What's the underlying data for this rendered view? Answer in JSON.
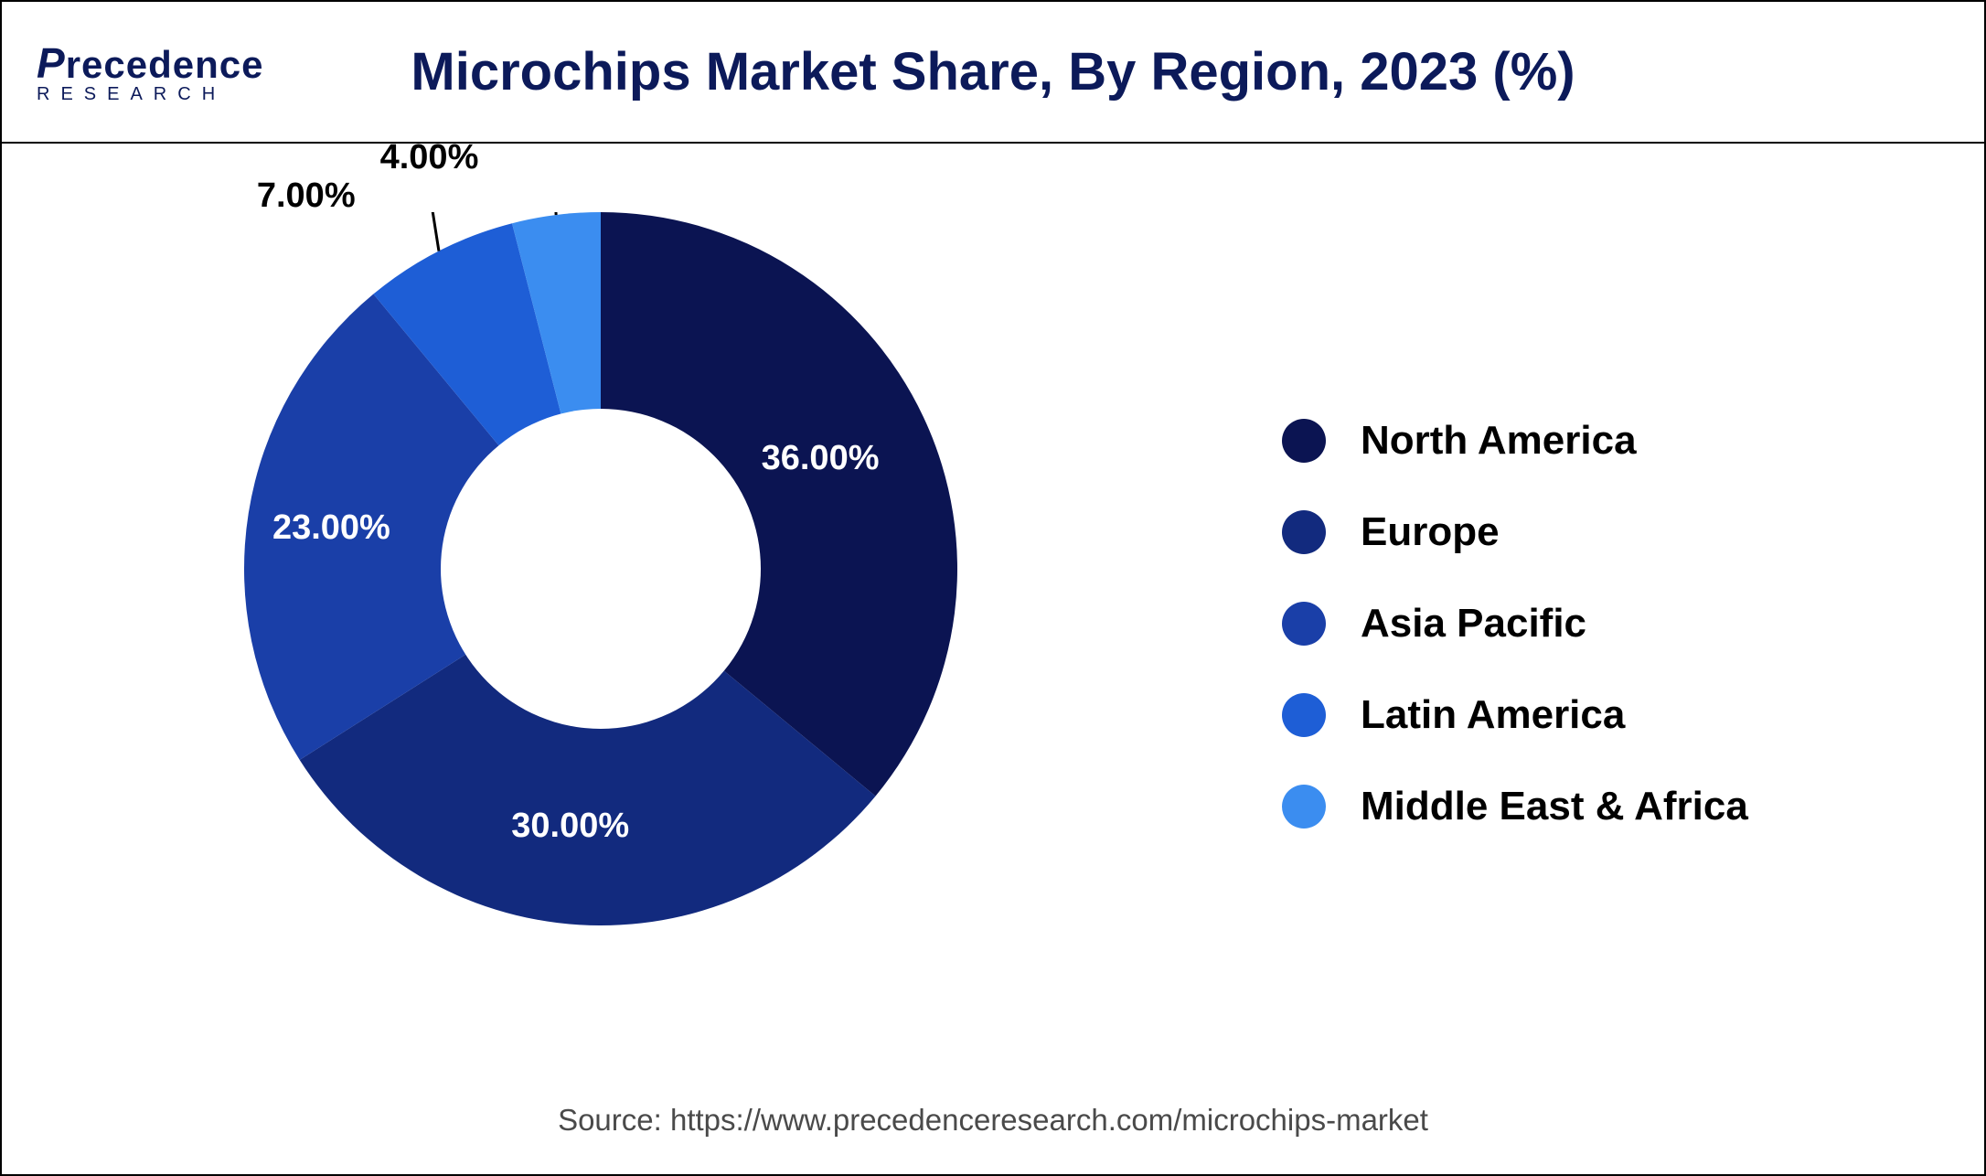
{
  "chart": {
    "type": "donut",
    "title": "Microchips Market  Share, By Region, 2023 (%)",
    "title_fontsize": 58,
    "title_color": "#0c1a5a",
    "background_color": "#ffffff",
    "border_color": "#000000",
    "outer_radius": 390,
    "inner_radius": 175,
    "center_fill": "#ffffff",
    "start_angle_deg": -90,
    "slices": [
      {
        "label": "North America",
        "value": 36.0,
        "display": "36.00%",
        "color": "#0b1452",
        "label_inside": true,
        "label_color": "#ffffff"
      },
      {
        "label": "Europe",
        "value": 30.0,
        "display": "30.00%",
        "color": "#122a7e",
        "label_inside": true,
        "label_color": "#ffffff"
      },
      {
        "label": "Asia Pacific",
        "value": 23.0,
        "display": "23.00%",
        "color": "#1a3fa8",
        "label_inside": true,
        "label_color": "#ffffff"
      },
      {
        "label": "Latin America",
        "value": 7.0,
        "display": "7.00%",
        "color": "#1e5ed6",
        "label_inside": false,
        "label_color": "#000000"
      },
      {
        "label": "Middle East & Africa",
        "value": 4.0,
        "display": "4.00%",
        "color": "#3b8df0",
        "label_inside": false,
        "label_color": "#000000"
      }
    ],
    "label_fontsize": 38,
    "label_fontweight": 700
  },
  "legend": {
    "dot_radius": 24,
    "fontsize": 44,
    "fontweight": 600,
    "text_color": "#000000",
    "gap": 50,
    "items": [
      {
        "label": "North America",
        "color": "#0b1452"
      },
      {
        "label": "Europe",
        "color": "#122a7e"
      },
      {
        "label": "Asia Pacific",
        "color": "#1a3fa8"
      },
      {
        "label": "Latin America",
        "color": "#1e5ed6"
      },
      {
        "label": "Middle East & Africa",
        "color": "#3b8df0"
      }
    ]
  },
  "logo": {
    "main": "Precedence",
    "sub": "RESEARCH",
    "color": "#0c1a5a"
  },
  "source": {
    "prefix": "Source: ",
    "url": "https://www.precedenceresearch.com/microchips-market",
    "fontsize": 33,
    "color": "#4a4a4a"
  }
}
